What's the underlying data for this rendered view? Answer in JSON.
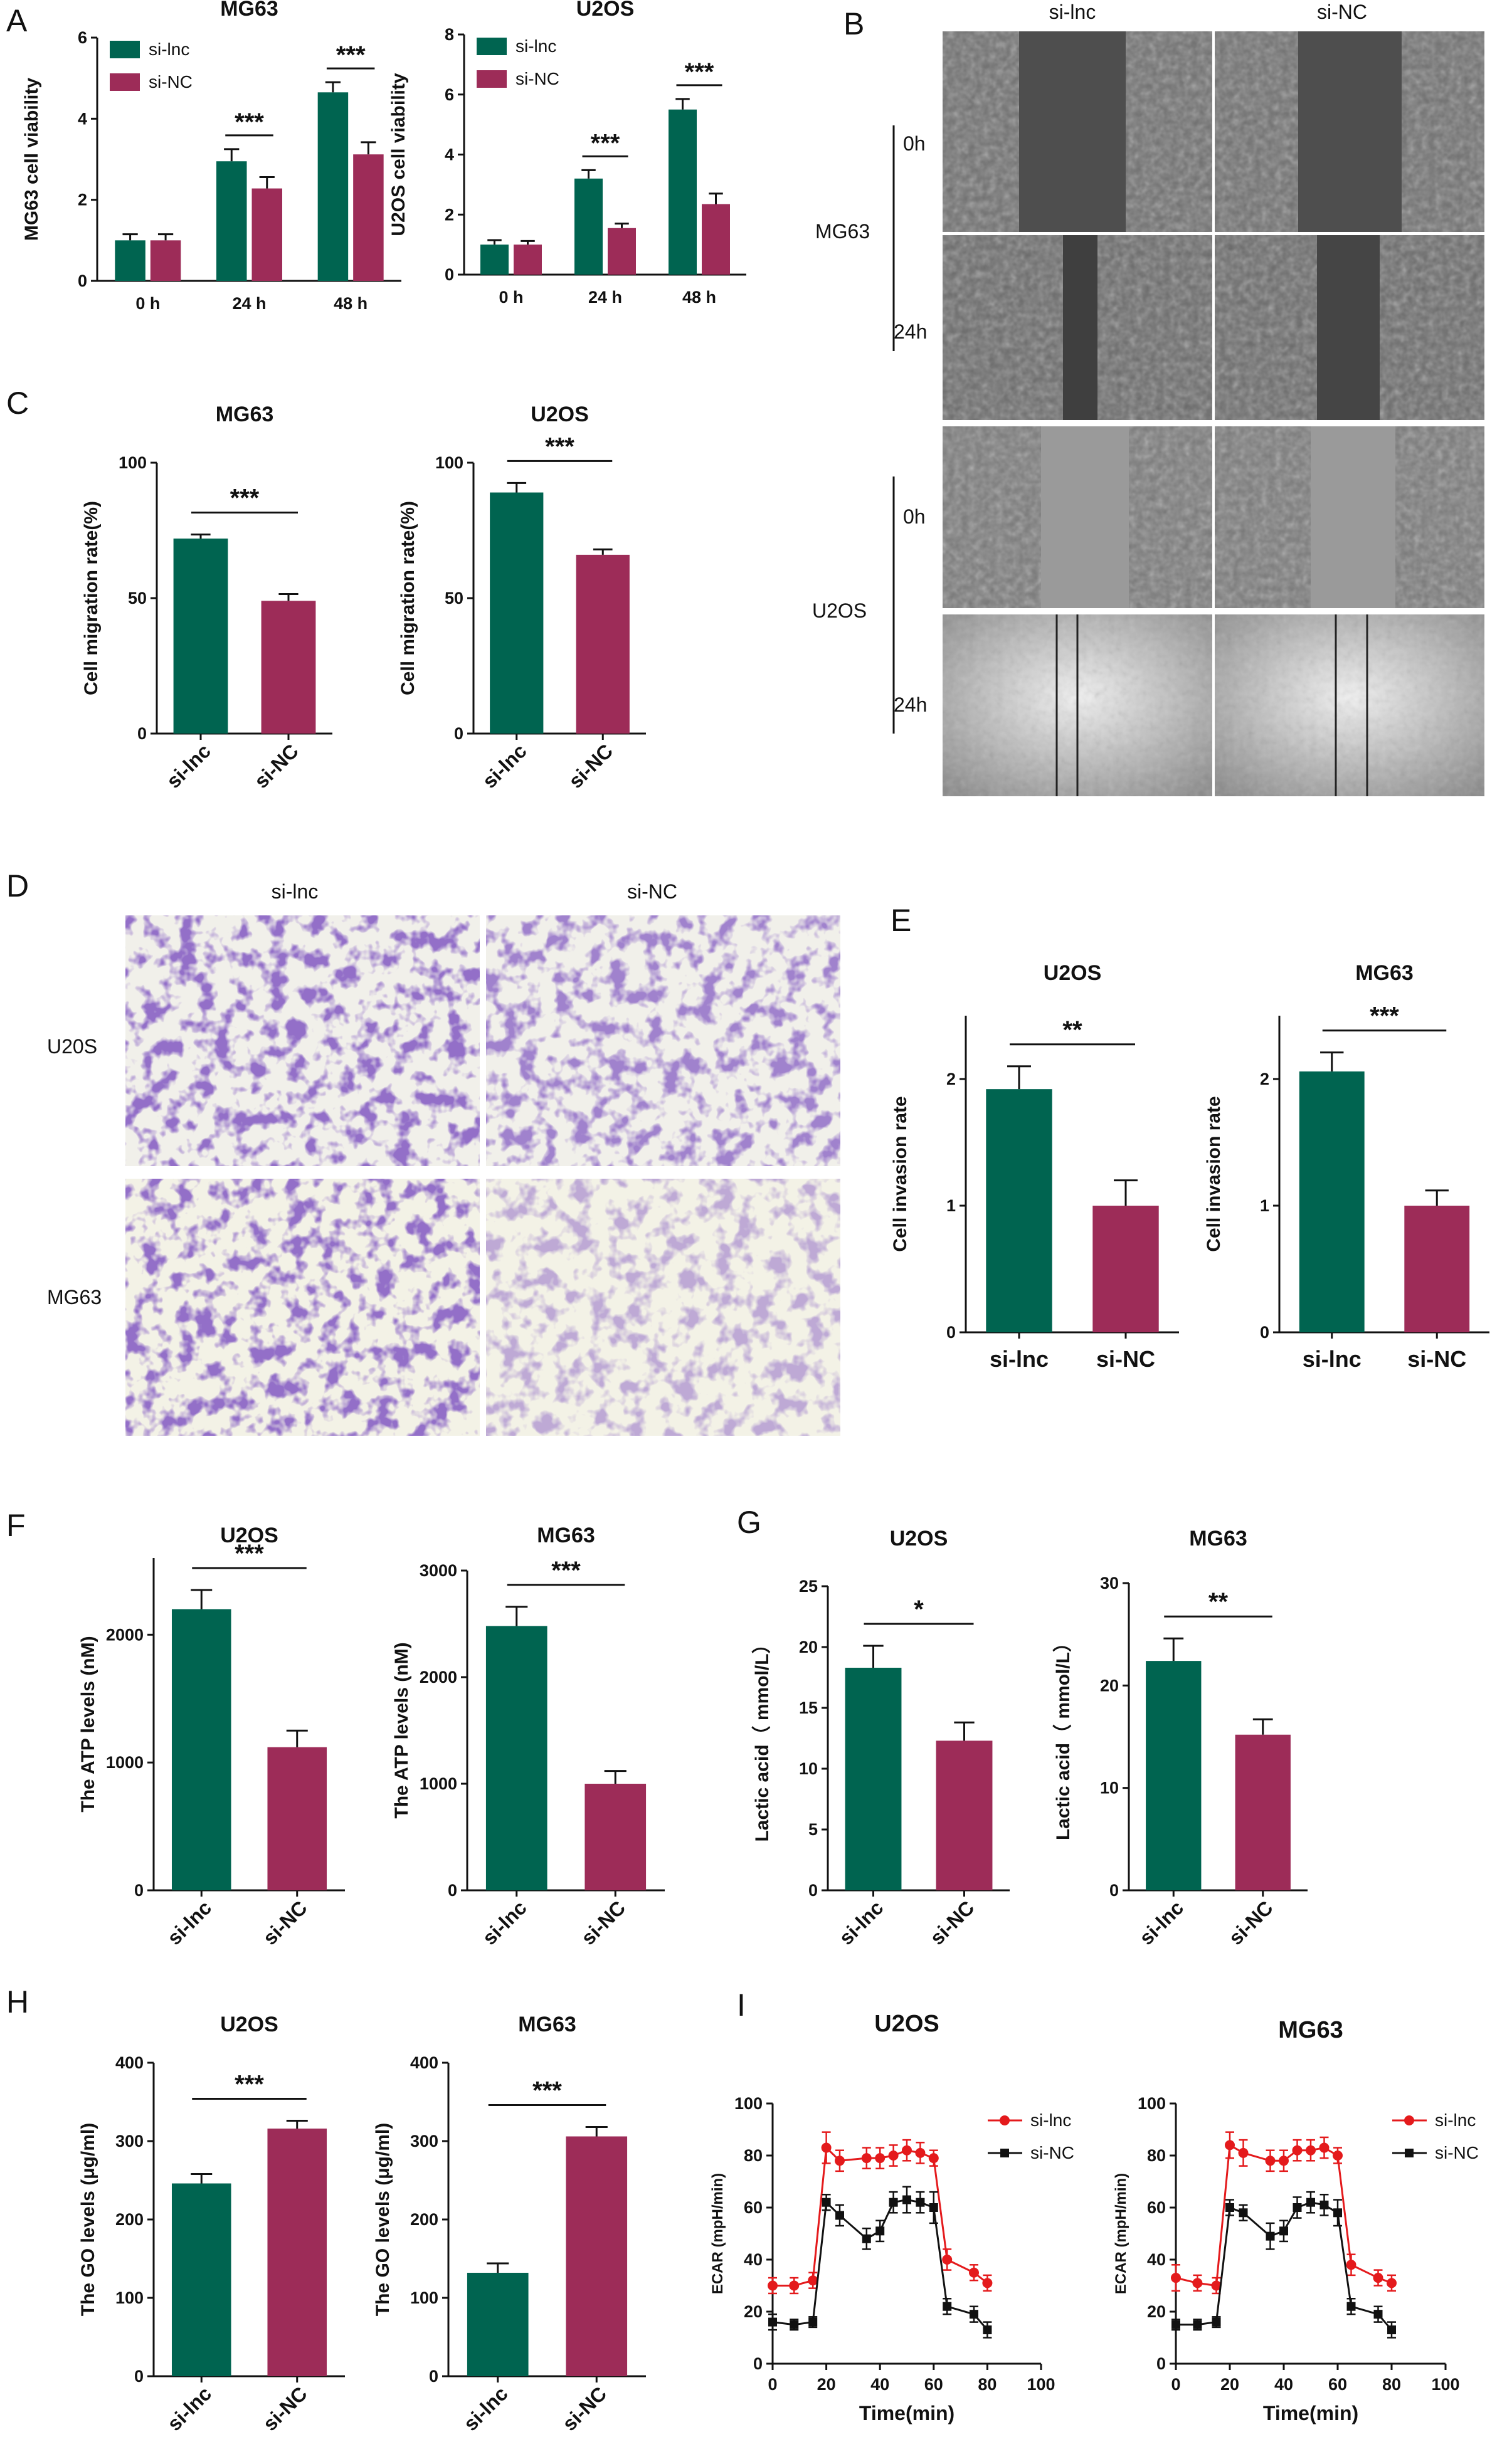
{
  "colors": {
    "green": "#006450",
    "magenta": "#9d2c58",
    "red": "#e41a1c",
    "black": "#111111"
  },
  "panel_letters": [
    "A",
    "B",
    "C",
    "D",
    "E",
    "F",
    "G",
    "H",
    "I"
  ],
  "panel_b": {
    "columns": [
      "si-lnc",
      "si-NC"
    ],
    "groups": [
      {
        "name": "MG63",
        "times": [
          "0h",
          "24h"
        ]
      },
      {
        "name": "U2OS",
        "times": [
          "0h",
          "24h"
        ]
      }
    ]
  },
  "panel_d": {
    "columns": [
      "si-lnc",
      "si-NC"
    ],
    "rows": [
      "U20S",
      "MG63"
    ]
  },
  "chart_data": [
    {
      "id": "A_MG63",
      "type": "bar",
      "title": "MG63",
      "ylabel": "MG63 cell viability",
      "categories": [
        "0 h",
        "24 h",
        "48 h"
      ],
      "ylim": [
        0,
        6
      ],
      "yticks": [
        0,
        2,
        4,
        6
      ],
      "series": [
        {
          "name": "si-lnc",
          "color": "#006450",
          "values": [
            1.0,
            2.95,
            4.65
          ],
          "errors": [
            0.15,
            0.3,
            0.25
          ]
        },
        {
          "name": "si-NC",
          "color": "#9d2c58",
          "values": [
            1.0,
            2.28,
            3.12
          ],
          "errors": [
            0.15,
            0.28,
            0.3
          ]
        }
      ],
      "significance": [
        "",
        "***",
        "***"
      ]
    },
    {
      "id": "A_U2OS",
      "type": "bar",
      "title": "U2OS",
      "ylabel": "U2OS cell viability",
      "categories": [
        "0 h",
        "24 h",
        "48 h"
      ],
      "ylim": [
        0,
        8
      ],
      "yticks": [
        0,
        2,
        4,
        6,
        8
      ],
      "series": [
        {
          "name": "si-lnc",
          "color": "#006450",
          "values": [
            1.0,
            3.2,
            5.5
          ],
          "errors": [
            0.15,
            0.28,
            0.35
          ]
        },
        {
          "name": "si-NC",
          "color": "#9d2c58",
          "values": [
            1.0,
            1.55,
            2.35
          ],
          "errors": [
            0.12,
            0.15,
            0.35
          ]
        }
      ],
      "significance": [
        "",
        "***",
        "***"
      ]
    },
    {
      "id": "C_MG63",
      "type": "bar",
      "title": "MG63",
      "ylabel": "Cell migration rate(%)",
      "categories": [
        "si-lnc",
        "si-NC"
      ],
      "ylim": [
        0,
        100
      ],
      "yticks": [
        0,
        50,
        100
      ],
      "values": [
        72,
        49
      ],
      "errors": [
        1.5,
        2.5
      ],
      "colors": [
        "#006450",
        "#9d2c58"
      ],
      "significance": "***"
    },
    {
      "id": "C_U2OS",
      "type": "bar",
      "title": "U2OS",
      "ylabel": "Cell migration rate(%)",
      "categories": [
        "si-lnc",
        "si-NC"
      ],
      "ylim": [
        0,
        100
      ],
      "yticks": [
        0,
        50,
        100
      ],
      "values": [
        89,
        66
      ],
      "errors": [
        3.5,
        2.0
      ],
      "colors": [
        "#006450",
        "#9d2c58"
      ],
      "significance": "***"
    },
    {
      "id": "E_U2OS",
      "type": "bar",
      "title": "U2OS",
      "ylabel": "Cell invasion rate",
      "categories": [
        "si-lnc",
        "si-NC"
      ],
      "ylim": [
        0,
        2.5
      ],
      "yticks": [
        0,
        1,
        2
      ],
      "values": [
        1.92,
        1.0
      ],
      "errors": [
        0.18,
        0.2
      ],
      "colors": [
        "#006450",
        "#9d2c58"
      ],
      "significance": "**"
    },
    {
      "id": "E_MG63",
      "type": "bar",
      "title": "MG63",
      "ylabel": "Cell invasion rate",
      "categories": [
        "si-lnc",
        "si-NC"
      ],
      "ylim": [
        0,
        2.5
      ],
      "yticks": [
        0,
        1,
        2
      ],
      "values": [
        2.06,
        1.0
      ],
      "errors": [
        0.15,
        0.12
      ],
      "colors": [
        "#006450",
        "#9d2c58"
      ],
      "significance": "***"
    },
    {
      "id": "F_U2OS",
      "type": "bar",
      "title": "U2OS",
      "ylabel": "The  ATP levels (nM)",
      "categories": [
        "si-lnc",
        "si-NC"
      ],
      "ylim": [
        0,
        2600
      ],
      "yticks": [
        0,
        1000,
        2000
      ],
      "values": [
        2200,
        1120
      ],
      "errors": [
        150,
        130
      ],
      "colors": [
        "#006450",
        "#9d2c58"
      ],
      "significance": "***"
    },
    {
      "id": "F_MG63",
      "type": "bar",
      "title": "MG63",
      "ylabel": "The  ATP levels (nM)",
      "categories": [
        "si-lnc",
        "si-NC"
      ],
      "ylim": [
        0,
        3000
      ],
      "yticks": [
        0,
        1000,
        2000,
        3000
      ],
      "values": [
        2480,
        1000
      ],
      "errors": [
        180,
        120
      ],
      "colors": [
        "#006450",
        "#9d2c58"
      ],
      "significance": "***"
    },
    {
      "id": "G_U2OS",
      "type": "bar",
      "title": "U2OS",
      "ylabel": "Lactic acid（ mmol/L）",
      "categories": [
        "si-lnc",
        "si-NC"
      ],
      "ylim": [
        0,
        25
      ],
      "yticks": [
        0,
        5,
        10,
        15,
        20,
        25
      ],
      "values": [
        18.3,
        12.3
      ],
      "errors": [
        1.8,
        1.5
      ],
      "colors": [
        "#006450",
        "#9d2c58"
      ],
      "significance": "*"
    },
    {
      "id": "G_MG63",
      "type": "bar",
      "title": "MG63",
      "ylabel": "Lactic acid（ mmol/L）",
      "categories": [
        "si-lnc",
        "si-NC"
      ],
      "ylim": [
        0,
        30
      ],
      "yticks": [
        0,
        10,
        20,
        30
      ],
      "values": [
        22.4,
        15.2
      ],
      "errors": [
        2.2,
        1.5
      ],
      "colors": [
        "#006450",
        "#9d2c58"
      ],
      "significance": "**"
    },
    {
      "id": "H_U2OS",
      "type": "bar",
      "title": "U2OS",
      "ylabel": "The  GO levels (μg/ml)",
      "categories": [
        "si-lnc",
        "si-NC"
      ],
      "ylim": [
        0,
        400
      ],
      "yticks": [
        0,
        100,
        200,
        300,
        400
      ],
      "values": [
        246,
        316
      ],
      "errors": [
        12,
        10
      ],
      "colors": [
        "#006450",
        "#9d2c58"
      ],
      "significance": "***"
    },
    {
      "id": "H_MG63",
      "type": "bar",
      "title": "MG63",
      "ylabel": "The  GO levels (μg/ml)",
      "categories": [
        "si-lnc",
        "si-NC"
      ],
      "ylim": [
        0,
        400
      ],
      "yticks": [
        0,
        100,
        200,
        300,
        400
      ],
      "values": [
        132,
        306
      ],
      "errors": [
        12,
        12
      ],
      "colors": [
        "#006450",
        "#9d2c58"
      ],
      "significance": "***"
    },
    {
      "id": "I_U2OS",
      "type": "line",
      "title": "U2OS",
      "xlabel": "Time(min)",
      "ylabel": "ECAR (mpH/min)",
      "xlim": [
        0,
        100
      ],
      "ylim": [
        0,
        100
      ],
      "xticks": [
        0,
        20,
        40,
        60,
        80,
        100
      ],
      "yticks": [
        0,
        20,
        40,
        60,
        80,
        100
      ],
      "x": [
        0,
        8,
        15,
        20,
        25,
        35,
        40,
        45,
        50,
        55,
        60,
        65,
        75,
        80
      ],
      "series": [
        {
          "name": "si-lnc",
          "color": "#e41a1c",
          "marker": "circle",
          "values": [
            30,
            30,
            32,
            83,
            78,
            79,
            79,
            80,
            82,
            81,
            79,
            40,
            35,
            31
          ],
          "errors": [
            3,
            3,
            3,
            6,
            4,
            4,
            4,
            4,
            4,
            4,
            3,
            4,
            3,
            3
          ]
        },
        {
          "name": "si-NC",
          "color": "#111111",
          "marker": "square",
          "values": [
            16,
            15,
            16,
            62,
            57,
            48,
            51,
            62,
            63,
            62,
            60,
            22,
            19,
            13
          ],
          "errors": [
            3,
            2,
            2,
            3,
            4,
            4,
            4,
            4,
            5,
            4,
            6,
            3,
            3,
            3
          ]
        }
      ]
    },
    {
      "id": "I_MG63",
      "type": "line",
      "title": "MG63",
      "xlabel": "Time(min)",
      "ylabel": "ECAR (mpH/min)",
      "xlim": [
        0,
        100
      ],
      "ylim": [
        0,
        100
      ],
      "xticks": [
        0,
        20,
        40,
        60,
        80,
        100
      ],
      "yticks": [
        0,
        20,
        40,
        60,
        80,
        100
      ],
      "x": [
        0,
        8,
        15,
        20,
        25,
        35,
        40,
        45,
        50,
        55,
        60,
        65,
        75,
        80
      ],
      "series": [
        {
          "name": "si-lnc",
          "color": "#e41a1c",
          "marker": "circle",
          "values": [
            33,
            31,
            30,
            84,
            81,
            78,
            78,
            82,
            82,
            83,
            80,
            38,
            33,
            31
          ],
          "errors": [
            5,
            3,
            3,
            5,
            5,
            4,
            4,
            4,
            4,
            4,
            3,
            4,
            3,
            3
          ]
        },
        {
          "name": "si-NC",
          "color": "#111111",
          "marker": "square",
          "values": [
            15,
            15,
            16,
            60,
            58,
            49,
            51,
            60,
            62,
            61,
            58,
            22,
            19,
            13
          ],
          "errors": [
            2,
            2,
            2,
            3,
            3,
            5,
            4,
            4,
            4,
            4,
            5,
            3,
            3,
            3
          ]
        }
      ]
    }
  ]
}
